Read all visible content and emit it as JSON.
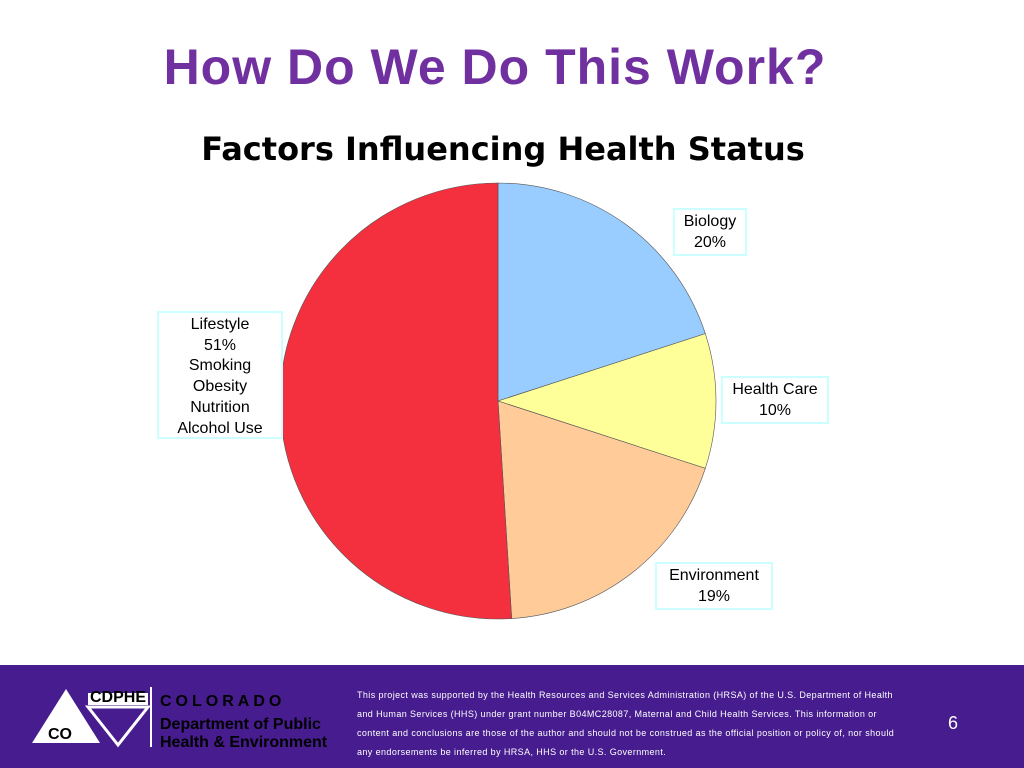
{
  "slide": {
    "title": "How Do We Do This Work?",
    "footer": {
      "logo_badge": "CDPHE",
      "logo_initials": "CO",
      "logo_state": "COLORADO",
      "logo_department": [
        "Department of Public",
        "Health & Environment"
      ],
      "disclaimer": "This project was supported by the Health Resources and Services Administration (HRSA) of the U.S. Department of Health and Human Services (HHS) under grant number B04MC28087, Maternal and Child Health Services. This information or content and conclusions are those of the author and should not be construed as the official position or policy of, nor should any endorsements be inferred by HRSA, HHS or the U.S. Government.",
      "page_number": "6"
    }
  },
  "chart_data": {
    "type": "pie",
    "title": "Factors Influencing Health Status",
    "categories": [
      "Biology",
      "Health Care",
      "Environment",
      "Lifestyle"
    ],
    "values": [
      20,
      10,
      19,
      51
    ],
    "value_labels": [
      "20%",
      "10%",
      "19%",
      "51%"
    ],
    "colors": [
      "#99ccff",
      "#ffff99",
      "#ffcc99",
      "#f4303f"
    ],
    "annotation": [
      "Smoking",
      "Obesity",
      "Nutrition",
      "Alcohol Use"
    ]
  }
}
